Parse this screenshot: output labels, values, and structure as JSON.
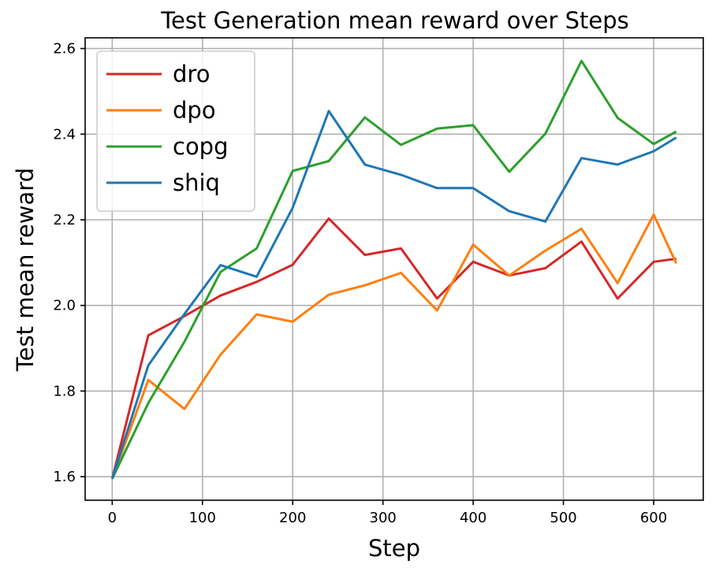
{
  "chart_data": {
    "type": "line",
    "title": "Test Generation mean reward over Steps",
    "xlabel": "Step",
    "ylabel": "Test mean reward",
    "xlim": [
      -30,
      655
    ],
    "ylim": [
      1.545,
      2.625
    ],
    "xticks": [
      0,
      100,
      200,
      300,
      400,
      500,
      600
    ],
    "yticks": [
      1.6,
      1.8,
      2.0,
      2.2,
      2.4,
      2.6
    ],
    "ytick_labels": [
      "1.6",
      "1.8",
      "2.0",
      "2.2",
      "2.4",
      "2.6"
    ],
    "grid": true,
    "legend_position": "top-left",
    "x": [
      0,
      40,
      80,
      120,
      160,
      200,
      240,
      280,
      320,
      360,
      400,
      440,
      480,
      520,
      560,
      600,
      625
    ],
    "series": [
      {
        "name": "dro",
        "color": "#d62728",
        "values": [
          1.595,
          1.93,
          1.975,
          2.023,
          2.055,
          2.095,
          2.203,
          2.118,
          2.133,
          2.016,
          2.102,
          2.07,
          2.087,
          2.149,
          2.016,
          2.102,
          2.109
        ]
      },
      {
        "name": "dpo",
        "color": "#ff7f0e",
        "values": [
          1.595,
          1.826,
          1.758,
          1.885,
          1.979,
          1.962,
          2.025,
          2.047,
          2.076,
          1.988,
          2.142,
          2.07,
          2.128,
          2.179,
          2.052,
          2.212,
          2.098
        ]
      },
      {
        "name": "copg",
        "color": "#2ca02c",
        "values": [
          1.595,
          1.772,
          1.915,
          2.078,
          2.133,
          2.314,
          2.337,
          2.439,
          2.375,
          2.413,
          2.421,
          2.312,
          2.401,
          2.571,
          2.438,
          2.377,
          2.406
        ]
      },
      {
        "name": "shiq",
        "color": "#1f77b4",
        "values": [
          1.595,
          1.86,
          1.98,
          2.094,
          2.067,
          2.228,
          2.454,
          2.329,
          2.305,
          2.274,
          2.274,
          2.22,
          2.196,
          2.344,
          2.329,
          2.36,
          2.392
        ]
      }
    ]
  }
}
